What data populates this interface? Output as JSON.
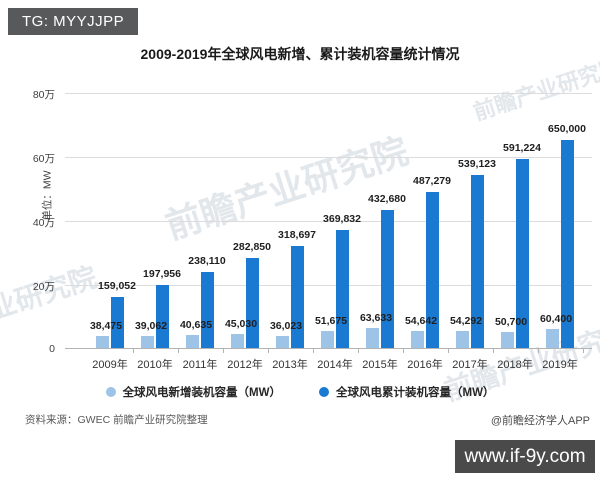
{
  "page": {
    "tg_badge": "TG: MYYJJPP",
    "site_bar": "www.if-9y.com"
  },
  "chart_data": {
    "type": "bar",
    "title": "2009-2019年全球风电新增、累计装机容量统计情况",
    "unit_label": "单位：MW",
    "categories": [
      "2009年",
      "2010年",
      "2011年",
      "2012年",
      "2013年",
      "2014年",
      "2015年",
      "2016年",
      "2017年",
      "2018年",
      "2019年"
    ],
    "series": [
      {
        "name": "全球风电新增装机容量（MW）",
        "color": "#9dc3e6",
        "values": [
          38475,
          39062,
          40635,
          45030,
          36023,
          51675,
          63633,
          54642,
          54292,
          50700,
          60400
        ]
      },
      {
        "name": "全球风电累计装机容量（MW）",
        "color": "#1a7ad2",
        "values": [
          159052,
          197956,
          238110,
          282850,
          318697,
          369832,
          432680,
          487279,
          539123,
          591224,
          650000
        ]
      }
    ],
    "ylim": [
      0,
      800000
    ],
    "yticks": [
      {
        "value": 800000,
        "label": "80万"
      },
      {
        "value": 600000,
        "label": "60万"
      },
      {
        "value": 400000,
        "label": "40万"
      },
      {
        "value": 200000,
        "label": "20万"
      },
      {
        "value": 0,
        "label": "0"
      }
    ],
    "grid": true,
    "legend_position": "bottom"
  },
  "footer": {
    "source": "资料来源：GWEC 前瞻产业研究院整理",
    "credit": "@前瞻经济学人APP"
  },
  "watermark": {
    "text": "前瞻产业研究院",
    "text_partial": "业研究院"
  }
}
